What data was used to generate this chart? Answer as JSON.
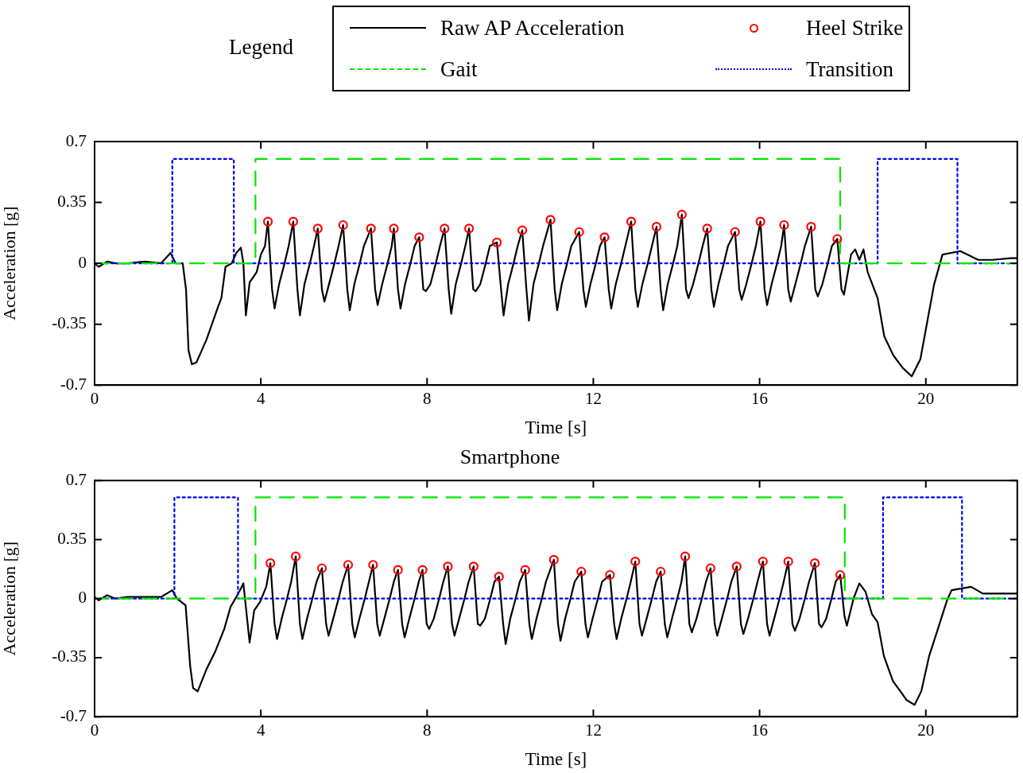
{
  "chart_data": [
    {
      "type": "line",
      "legend": "top",
      "legend_title": "Legend",
      "xlabel": "Time [s]",
      "ylabel": "Acceleration [g]",
      "xlim": [
        0,
        22.2
      ],
      "xticks": [
        0,
        4,
        8,
        12,
        16,
        20
      ],
      "ylim": [
        -0.7,
        0.7
      ],
      "yticks": [
        -0.7,
        -0.35,
        0,
        0.35,
        0.7
      ],
      "grid": false,
      "series": [
        {
          "name": "Raw AP Acceleration",
          "color": "#000000",
          "line_style": "solid",
          "marker": "none",
          "x": [
            0,
            0.1,
            0.3,
            0.5,
            0.8,
            1.2,
            1.6,
            1.83,
            1.95,
            2.12,
            2.2,
            2.26,
            2.34,
            2.45,
            2.69,
            2.97,
            3.05,
            3.15,
            3.3,
            3.41,
            3.52,
            3.58,
            3.64,
            3.73,
            3.9,
            4.0,
            4.1,
            4.17,
            4.27,
            4.33,
            4.44,
            4.57,
            4.67,
            4.78,
            4.88,
            4.94,
            5.05,
            5.18,
            5.28,
            5.37,
            5.47,
            5.53,
            5.64,
            5.77,
            5.87,
            5.98,
            6.08,
            6.14,
            6.25,
            6.38,
            6.48,
            6.65,
            6.75,
            6.81,
            6.92,
            7.05,
            7.15,
            7.2,
            7.3,
            7.36,
            7.47,
            7.6,
            7.7,
            7.81,
            7.91,
            7.97,
            8.08,
            8.21,
            8.31,
            8.42,
            8.52,
            8.58,
            8.69,
            8.82,
            8.92,
            9.01,
            9.11,
            9.17,
            9.28,
            9.41,
            9.51,
            9.68,
            9.78,
            9.84,
            9.95,
            10.08,
            10.18,
            10.29,
            10.39,
            10.45,
            10.56,
            10.69,
            10.79,
            10.97,
            11.07,
            11.13,
            11.24,
            11.37,
            11.47,
            11.66,
            11.76,
            11.82,
            11.93,
            12.06,
            12.16,
            12.27,
            12.37,
            12.43,
            12.54,
            12.67,
            12.77,
            12.91,
            13.01,
            13.07,
            13.18,
            13.31,
            13.41,
            13.52,
            13.62,
            13.68,
            13.79,
            13.92,
            14.02,
            14.13,
            14.23,
            14.29,
            14.4,
            14.53,
            14.63,
            14.74,
            14.84,
            14.9,
            15.01,
            15.14,
            15.24,
            15.41,
            15.51,
            15.57,
            15.68,
            15.81,
            15.91,
            16.02,
            16.12,
            16.18,
            16.29,
            16.42,
            16.52,
            16.59,
            16.69,
            16.75,
            16.86,
            16.99,
            17.09,
            17.24,
            17.34,
            17.4,
            17.51,
            17.64,
            17.74,
            17.87,
            17.97,
            18.03,
            18.2,
            18.3,
            18.4,
            18.5,
            18.6,
            18.84,
            19.0,
            19.22,
            19.44,
            19.66,
            19.87,
            20.0,
            20.2,
            20.4,
            20.83,
            21.26,
            21.6,
            22.05,
            22.2
          ],
          "values": [
            0,
            -0.02,
            0.01,
            0,
            0,
            0.01,
            0,
            0.06,
            0,
            0,
            -0.15,
            -0.5,
            -0.58,
            -0.57,
            -0.44,
            -0.25,
            -0.2,
            -0.02,
            0,
            0.06,
            0.09,
            0,
            -0.3,
            -0.11,
            -0.05,
            0.05,
            0.1,
            0.24,
            -0.15,
            -0.26,
            -0.12,
            0,
            0.1,
            0.24,
            -0.15,
            -0.3,
            -0.12,
            0,
            0.1,
            0.2,
            -0.15,
            -0.22,
            -0.12,
            0,
            0.1,
            0.22,
            -0.15,
            -0.27,
            -0.12,
            0,
            0.1,
            0.2,
            -0.15,
            -0.24,
            -0.12,
            0,
            0.1,
            0.2,
            -0.15,
            -0.26,
            -0.12,
            0,
            0.1,
            0.15,
            -0.15,
            -0.16,
            -0.12,
            0,
            0.1,
            0.2,
            -0.15,
            -0.29,
            -0.12,
            0,
            0.1,
            0.2,
            -0.15,
            -0.16,
            -0.12,
            0,
            0.1,
            0.12,
            -0.15,
            -0.3,
            -0.12,
            0,
            0.1,
            0.19,
            -0.15,
            -0.33,
            -0.12,
            0,
            0.1,
            0.25,
            -0.15,
            -0.27,
            -0.12,
            0,
            0.1,
            0.18,
            -0.15,
            -0.25,
            -0.12,
            0,
            0.1,
            0.15,
            -0.15,
            -0.26,
            -0.12,
            0,
            0.1,
            0.24,
            -0.15,
            -0.25,
            -0.12,
            0,
            0.1,
            0.21,
            -0.15,
            -0.27,
            -0.12,
            0,
            0.1,
            0.28,
            -0.15,
            -0.2,
            -0.12,
            0,
            0.1,
            0.2,
            -0.15,
            -0.25,
            -0.12,
            0,
            0.1,
            0.18,
            -0.15,
            -0.21,
            -0.12,
            0,
            0.1,
            0.24,
            -0.15,
            -0.24,
            -0.12,
            0,
            0.1,
            0.22,
            -0.15,
            -0.22,
            -0.12,
            0,
            0.1,
            0.21,
            -0.15,
            -0.19,
            -0.12,
            0,
            0.1,
            0.14,
            -0.15,
            -0.18,
            0.05,
            0.08,
            0.02,
            0.08,
            -0.05,
            -0.2,
            -0.42,
            -0.53,
            -0.6,
            -0.65,
            -0.55,
            -0.38,
            -0.12,
            0.05,
            0.07,
            0.02,
            0.02,
            0.03,
            0.03
          ]
        },
        {
          "name": "Heel Strike",
          "type": "scatter",
          "color": "#ff0000",
          "marker": "circle",
          "x": [
            4.17,
            4.78,
            5.37,
            5.98,
            6.65,
            7.2,
            7.81,
            8.42,
            9.01,
            9.68,
            10.29,
            10.97,
            11.66,
            12.27,
            12.91,
            13.52,
            14.13,
            14.74,
            15.41,
            16.02,
            16.59,
            17.24,
            17.87
          ],
          "values": [
            0.24,
            0.24,
            0.2,
            0.22,
            0.2,
            0.2,
            0.15,
            0.2,
            0.2,
            0.12,
            0.19,
            0.25,
            0.18,
            0.15,
            0.24,
            0.21,
            0.28,
            0.2,
            0.18,
            0.24,
            0.22,
            0.21,
            0.14
          ]
        },
        {
          "name": "Gait",
          "type": "step",
          "color": "#00e600",
          "line_style": "dashed",
          "marker": "none",
          "x": [
            0,
            3.87,
            17.94,
            22.2
          ],
          "values": [
            0,
            0.6,
            0,
            0
          ]
        },
        {
          "name": "Transition",
          "type": "step",
          "color": "#0000ee",
          "line_style": "dotted",
          "marker": "none",
          "x": [
            0,
            1.87,
            3.35,
            18.84,
            20.76,
            22.2
          ],
          "values": [
            0,
            0.6,
            0,
            0.6,
            0,
            0
          ]
        }
      ]
    },
    {
      "type": "line",
      "title": "Smartphone",
      "legend": false,
      "xlabel": "Time [s]",
      "ylabel": "Acceleration [g]",
      "xlim": [
        0,
        22.2
      ],
      "xticks": [
        0,
        4,
        8,
        12,
        16,
        20
      ],
      "ylim": [
        -0.7,
        0.7
      ],
      "yticks": [
        -0.7,
        -0.35,
        0,
        0.35,
        0.7
      ],
      "grid": false,
      "series": [
        {
          "color": "#000000",
          "line_style": "solid",
          "marker": "none",
          "x": [
            0,
            0.1,
            0.3,
            0.5,
            0.8,
            1.2,
            1.6,
            1.87,
            1.98,
            2.19,
            2.3,
            2.37,
            2.48,
            2.69,
            2.91,
            3.12,
            3.27,
            3.41,
            3.52,
            3.58,
            3.73,
            3.84,
            3.98,
            4.13,
            4.23,
            4.33,
            4.39,
            4.5,
            4.63,
            4.73,
            4.84,
            4.94,
            5.0,
            5.11,
            5.24,
            5.34,
            5.47,
            5.57,
            5.63,
            5.74,
            5.87,
            5.97,
            6.1,
            6.2,
            6.26,
            6.37,
            6.5,
            6.6,
            6.7,
            6.8,
            6.86,
            6.97,
            7.1,
            7.2,
            7.3,
            7.4,
            7.46,
            7.57,
            7.7,
            7.8,
            7.89,
            7.99,
            8.05,
            8.16,
            8.29,
            8.39,
            8.5,
            8.6,
            8.66,
            8.77,
            8.9,
            9.0,
            9.12,
            9.22,
            9.28,
            9.39,
            9.52,
            9.62,
            9.73,
            9.83,
            9.89,
            10.0,
            10.13,
            10.23,
            10.36,
            10.46,
            10.52,
            10.63,
            10.76,
            10.86,
            11.05,
            11.15,
            11.21,
            11.32,
            11.45,
            11.55,
            11.71,
            11.81,
            11.87,
            11.98,
            12.11,
            12.21,
            12.4,
            12.5,
            12.56,
            12.67,
            12.8,
            12.9,
            13.01,
            13.11,
            13.17,
            13.28,
            13.41,
            13.51,
            13.62,
            13.72,
            13.78,
            13.89,
            14.02,
            14.12,
            14.21,
            14.31,
            14.37,
            14.48,
            14.61,
            14.71,
            14.82,
            14.92,
            14.98,
            15.09,
            15.22,
            15.32,
            15.45,
            15.55,
            15.61,
            15.72,
            15.85,
            15.95,
            16.08,
            16.18,
            16.24,
            16.35,
            16.48,
            16.58,
            16.69,
            16.79,
            16.85,
            16.96,
            17.09,
            17.19,
            17.33,
            17.43,
            17.49,
            17.6,
            17.73,
            17.83,
            17.94,
            18.04,
            18.1,
            18.26,
            18.4,
            18.55,
            18.7,
            18.84,
            18.99,
            19.21,
            19.39,
            19.53,
            19.73,
            19.89,
            20.08,
            20.29,
            20.51,
            20.62,
            21.09,
            21.37,
            22.1,
            22.2
          ],
          "values": [
            0.01,
            -0.01,
            0.02,
            0,
            0.01,
            0.01,
            0.01,
            0.05,
            0,
            -0.04,
            -0.4,
            -0.53,
            -0.55,
            -0.42,
            -0.31,
            -0.18,
            -0.05,
            0.01,
            0.06,
            0.09,
            -0.26,
            -0.07,
            -0.02,
            0.07,
            0.21,
            -0.15,
            -0.24,
            -0.12,
            0,
            0.1,
            0.25,
            -0.15,
            -0.24,
            -0.12,
            0,
            0.1,
            0.18,
            -0.15,
            -0.22,
            -0.12,
            0,
            0.1,
            0.2,
            -0.15,
            -0.23,
            -0.12,
            0,
            0.1,
            0.2,
            -0.15,
            -0.22,
            -0.12,
            0,
            0.1,
            0.17,
            -0.15,
            -0.23,
            -0.12,
            0,
            0.1,
            0.17,
            -0.15,
            -0.18,
            -0.12,
            0,
            0.1,
            0.19,
            -0.15,
            -0.22,
            -0.12,
            0,
            0.1,
            0.19,
            -0.15,
            -0.16,
            -0.12,
            0,
            0.1,
            0.13,
            -0.15,
            -0.27,
            -0.12,
            0,
            0.1,
            0.17,
            -0.15,
            -0.24,
            -0.12,
            0,
            0.1,
            0.23,
            -0.15,
            -0.25,
            -0.12,
            0,
            0.1,
            0.16,
            -0.15,
            -0.23,
            -0.12,
            0,
            0.1,
            0.14,
            -0.15,
            -0.24,
            -0.12,
            0,
            0.1,
            0.22,
            -0.15,
            -0.22,
            -0.12,
            0,
            0.1,
            0.16,
            -0.15,
            -0.23,
            -0.12,
            0,
            0.1,
            0.25,
            -0.15,
            -0.2,
            -0.12,
            0,
            0.1,
            0.18,
            -0.15,
            -0.22,
            -0.12,
            0,
            0.1,
            0.19,
            -0.15,
            -0.21,
            -0.12,
            0,
            0.1,
            0.22,
            -0.15,
            -0.22,
            -0.12,
            0,
            0.1,
            0.22,
            -0.15,
            -0.19,
            -0.12,
            0,
            0.1,
            0.21,
            -0.15,
            -0.17,
            -0.12,
            0,
            0.1,
            0.14,
            -0.1,
            -0.16,
            0,
            0.09,
            0.04,
            -0.09,
            -0.14,
            -0.34,
            -0.49,
            -0.55,
            -0.6,
            -0.63,
            -0.55,
            -0.34,
            -0.18,
            -0.01,
            0.05,
            0.07,
            0.03,
            0.03,
            0.03
          ]
        },
        {
          "type": "scatter",
          "color": "#ff0000",
          "marker": "circle",
          "x": [
            4.23,
            4.84,
            5.47,
            6.1,
            6.7,
            7.3,
            7.89,
            8.5,
            9.12,
            9.73,
            10.36,
            11.05,
            11.71,
            12.4,
            13.01,
            13.62,
            14.21,
            14.82,
            15.45,
            16.08,
            16.69,
            17.33,
            17.94
          ],
          "values": [
            0.21,
            0.25,
            0.18,
            0.2,
            0.2,
            0.17,
            0.17,
            0.19,
            0.19,
            0.13,
            0.17,
            0.23,
            0.16,
            0.14,
            0.22,
            0.16,
            0.25,
            0.18,
            0.19,
            0.22,
            0.22,
            0.21,
            0.14
          ]
        },
        {
          "type": "step",
          "color": "#00e600",
          "line_style": "dashed",
          "marker": "none",
          "x": [
            0,
            3.87,
            18.05,
            22.2
          ],
          "values": [
            0,
            0.6,
            0,
            0
          ]
        },
        {
          "type": "step",
          "color": "#0000ee",
          "line_style": "dotted",
          "marker": "none",
          "x": [
            0,
            1.92,
            3.45,
            18.97,
            20.87,
            22.2
          ],
          "values": [
            0,
            0.6,
            0,
            0.6,
            0,
            0
          ]
        }
      ]
    }
  ]
}
